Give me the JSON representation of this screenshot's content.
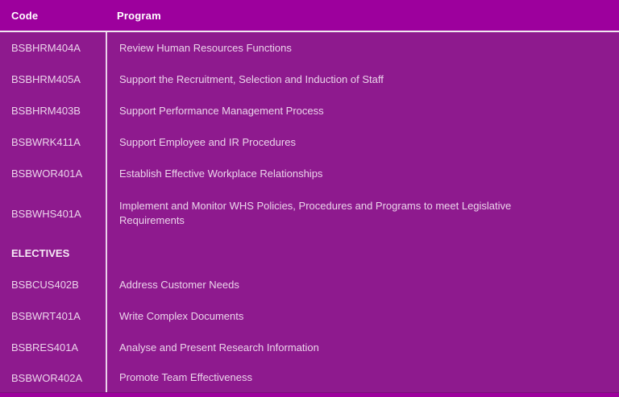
{
  "table": {
    "header": {
      "code_label": "Code",
      "program_label": "Program"
    },
    "rows": [
      {
        "code": "BSBHRM404A",
        "program": "Review Human Resources Functions"
      },
      {
        "code": "BSBHRM405A",
        "program": "Support the Recruitment, Selection and Induction of Staff"
      },
      {
        "code": "BSBHRM403B",
        "program": "Support Performance Management Process"
      },
      {
        "code": "BSBWRK411A",
        "program": "Support Employee and IR Procedures"
      },
      {
        "code": "BSBWOR401A",
        "program": "Establish Effective Workplace Relationships"
      },
      {
        "code": "BSBWHS401A",
        "program": "Implement and Monitor WHS Policies, Procedures and Programs to meet Legislative Requirements"
      },
      {
        "code": "ELECTIVES",
        "program": "",
        "section_header": true
      },
      {
        "code": "BSBCUS402B",
        "program": "Address Customer Needs"
      },
      {
        "code": "BSBWRT401A",
        "program": "Write Complex Documents"
      },
      {
        "code": "BSBRES401A",
        "program": "Analyse and Present Research Information"
      },
      {
        "code": "BSBWOR402A",
        "program": "Promote Team Effectiveness"
      }
    ]
  },
  "colors": {
    "header_bg": "#9D009D",
    "body_bg": "#8E1A8E",
    "footer_bg": "#9D009D",
    "header_text": "#FFFFFF",
    "body_text": "#EBD4EB",
    "divider": "#EBD2EB",
    "separator": "#F2E8F2"
  }
}
